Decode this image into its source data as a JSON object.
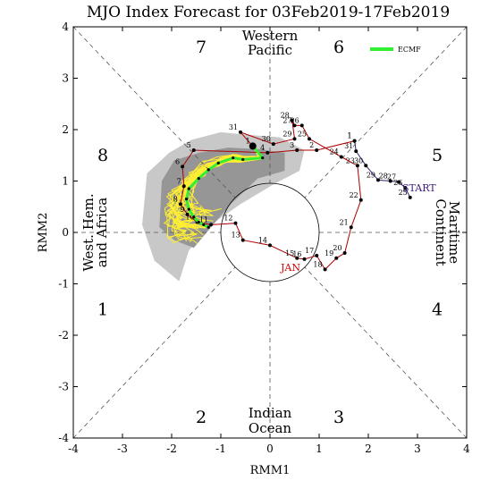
{
  "chart_data": {
    "type": "line",
    "title": "MJO Index Forecast for 03Feb2019-17Feb2019",
    "xlabel": "RMM1",
    "ylabel": "RMM2",
    "xlim": [
      -4,
      4
    ],
    "ylim": [
      -4,
      4
    ],
    "ticks": [
      "-4",
      "-3",
      "-2",
      "-1",
      "0",
      "1",
      "2",
      "3",
      "4"
    ],
    "grid": "diagonal dashed phase lines",
    "legend": {
      "position": "top-right",
      "label": "ECMF",
      "color": "#33ee33"
    },
    "phases": [
      {
        "label": "1",
        "x": -3.4,
        "y": -1.5
      },
      {
        "label": "2",
        "x": -1.4,
        "y": -3.6
      },
      {
        "label": "3",
        "x": 1.4,
        "y": -3.6
      },
      {
        "label": "4",
        "x": 3.4,
        "y": -1.5
      },
      {
        "label": "5",
        "x": 3.4,
        "y": 1.5
      },
      {
        "label": "6",
        "x": 1.4,
        "y": 3.6
      },
      {
        "label": "7",
        "x": -1.4,
        "y": 3.6
      },
      {
        "label": "8",
        "x": -3.4,
        "y": 1.5
      }
    ],
    "regions": {
      "top": [
        "Western",
        "Pacific"
      ],
      "bottom": [
        "Indian",
        "Ocean"
      ],
      "left": [
        "West. Hem.",
        "and Africa"
      ],
      "right": [
        "Maritime",
        "Continent"
      ]
    },
    "annotations": {
      "start": "START",
      "month": "JAN"
    },
    "observed_december": {
      "color": "#3a1a7a",
      "points": [
        {
          "day": "25",
          "x": 2.85,
          "y": 0.68
        },
        {
          "day": "26",
          "x": 2.75,
          "y": 0.87
        },
        {
          "day": "27",
          "x": 2.62,
          "y": 0.98
        },
        {
          "day": "28",
          "x": 2.45,
          "y": 1.0
        },
        {
          "day": "29",
          "x": 2.2,
          "y": 1.02
        },
        {
          "day": "30",
          "x": 1.95,
          "y": 1.3
        },
        {
          "day": "31",
          "x": 1.75,
          "y": 1.58
        },
        {
          "day": "1",
          "x": 1.72,
          "y": 1.78
        }
      ]
    },
    "observed_january": {
      "color": "#aa0000",
      "points": [
        {
          "day": "1",
          "x": 1.72,
          "y": 1.78
        },
        {
          "day": "2",
          "x": 0.95,
          "y": 1.6
        },
        {
          "day": "3",
          "x": 0.55,
          "y": 1.6
        },
        {
          "day": "4",
          "x": -0.05,
          "y": 1.55
        },
        {
          "day": "5",
          "x": -1.55,
          "y": 1.6
        },
        {
          "day": "6",
          "x": -1.78,
          "y": 1.28
        },
        {
          "day": "7",
          "x": -1.75,
          "y": 0.9
        },
        {
          "day": "8",
          "x": -1.82,
          "y": 0.55
        },
        {
          "day": "9",
          "x": -1.68,
          "y": 0.35
        },
        {
          "day": "10",
          "x": -1.48,
          "y": 0.2
        },
        {
          "day": "11",
          "x": -1.2,
          "y": 0.15
        },
        {
          "day": "12",
          "x": -0.7,
          "y": 0.18
        },
        {
          "day": "13",
          "x": -0.55,
          "y": -0.15
        },
        {
          "day": "14",
          "x": 0,
          "y": -0.25
        },
        {
          "day": "15",
          "x": 0.55,
          "y": -0.5
        },
        {
          "day": "16",
          "x": 0.7,
          "y": -0.52
        },
        {
          "day": "17",
          "x": 0.95,
          "y": -0.45
        },
        {
          "day": "18",
          "x": 1.12,
          "y": -0.72
        },
        {
          "day": "19",
          "x": 1.35,
          "y": -0.5
        },
        {
          "day": "20",
          "x": 1.52,
          "y": -0.4
        },
        {
          "day": "21",
          "x": 1.65,
          "y": 0.1
        },
        {
          "day": "22",
          "x": 1.85,
          "y": 0.63
        },
        {
          "day": "23",
          "x": 1.78,
          "y": 1.3
        },
        {
          "day": "24",
          "x": 1.45,
          "y": 1.47
        },
        {
          "day": "25",
          "x": 0.8,
          "y": 1.82
        },
        {
          "day": "26",
          "x": 0.65,
          "y": 2.08
        },
        {
          "day": "27",
          "x": 0.5,
          "y": 2.08
        },
        {
          "day": "28",
          "x": 0.45,
          "y": 2.18
        },
        {
          "day": "29",
          "x": 0.5,
          "y": 1.82
        },
        {
          "day": "30",
          "x": 0.07,
          "y": 1.72
        },
        {
          "day": "31",
          "x": -0.6,
          "y": 1.95
        },
        {
          "day": "1",
          "x": -0.35,
          "y": 1.68
        }
      ]
    },
    "forecast_mean": {
      "name": "ECMF",
      "color": "#33ee33",
      "points": [
        [
          -0.35,
          1.68
        ],
        [
          -0.15,
          1.45
        ],
        [
          -0.55,
          1.42
        ],
        [
          -0.75,
          1.45
        ],
        [
          -1.05,
          1.35
        ],
        [
          -1.25,
          1.22
        ],
        [
          -1.45,
          1.05
        ],
        [
          -1.65,
          0.85
        ],
        [
          -1.7,
          0.65
        ],
        [
          -1.65,
          0.45
        ],
        [
          -1.55,
          0.3
        ],
        [
          -1.45,
          0.2
        ],
        [
          -1.35,
          0.15
        ],
        [
          -1.25,
          0.1
        ]
      ]
    },
    "ensemble_region_light": [
      [
        -2.6,
        0.15
      ],
      [
        -2.5,
        1.15
      ],
      [
        -2.05,
        1.55
      ],
      [
        -1.6,
        1.8
      ],
      [
        -1.0,
        1.95
      ],
      [
        -0.45,
        1.9
      ],
      [
        0.2,
        1.85
      ],
      [
        0.7,
        1.6
      ],
      [
        0.6,
        1.2
      ],
      [
        0.1,
        0.95
      ],
      [
        -0.6,
        0.55
      ],
      [
        -1.2,
        0.15
      ],
      [
        -1.65,
        -0.35
      ],
      [
        -1.85,
        -0.95
      ],
      [
        -2.35,
        -0.55
      ]
    ],
    "ensemble_region_dark": [
      [
        -2.25,
        0.1
      ],
      [
        -2.2,
        1.0
      ],
      [
        -1.95,
        1.4
      ],
      [
        -1.45,
        1.55
      ],
      [
        -0.85,
        1.65
      ],
      [
        -0.25,
        1.62
      ],
      [
        0.3,
        1.55
      ],
      [
        0.3,
        1.2
      ],
      [
        -0.25,
        1.05
      ],
      [
        -0.8,
        0.55
      ],
      [
        -1.2,
        0.1
      ],
      [
        -1.55,
        -0.3
      ],
      [
        -1.95,
        -0.15
      ]
    ]
  }
}
